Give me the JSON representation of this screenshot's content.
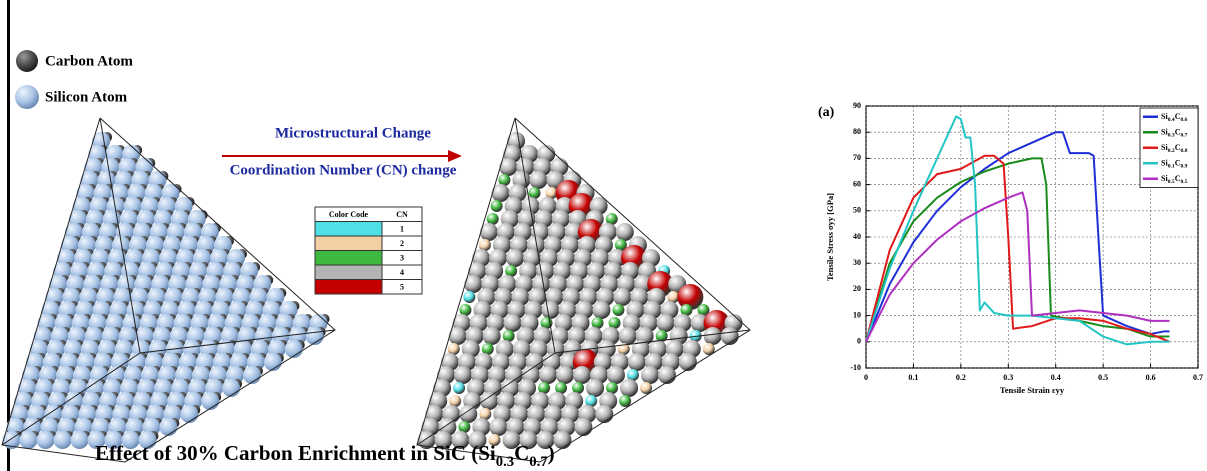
{
  "legend": {
    "carbon": "Carbon Atom",
    "silicon": "Silicon Atom",
    "carbon_color": "#4a4a4a",
    "silicon_color": "#a9c4e6"
  },
  "arrow": {
    "top": "Microstructural Change",
    "bottom": "Coordination Number (CN) change"
  },
  "table": {
    "header": [
      "Color Code",
      "CN"
    ],
    "rows": [
      {
        "color": "#4fe0e6",
        "cn": "1"
      },
      {
        "color": "#f3cfa4",
        "cn": "2"
      },
      {
        "color": "#3fb83f",
        "cn": "3"
      },
      {
        "color": "#b3b3b3",
        "cn": "4"
      },
      {
        "color": "#c40000",
        "cn": "5"
      }
    ]
  },
  "caption": "Effect of 30% Carbon Enrichment in SiC (Si0.3C0.7)",
  "chart_data": {
    "type": "line",
    "title": "(a)",
    "xlabel": "Tensile Strain εyy",
    "ylabel": "Tensile Stress σyy [GPa]",
    "xlim": [
      0,
      0.7
    ],
    "ylim": [
      -10,
      90
    ],
    "xticks": [
      0,
      0.1,
      0.2,
      0.3,
      0.4,
      0.5,
      0.6,
      0.7
    ],
    "yticks": [
      -10,
      0,
      10,
      20,
      30,
      40,
      50,
      60,
      70,
      80,
      90
    ],
    "grid": true,
    "legend": "upper-right",
    "series": [
      {
        "name": "Si0.4C0.6",
        "color": "#1f2fd6",
        "x": [
          0,
          0.05,
          0.1,
          0.15,
          0.2,
          0.25,
          0.3,
          0.35,
          0.4,
          0.415,
          0.43,
          0.47,
          0.48,
          0.49,
          0.5,
          0.55,
          0.6,
          0.63,
          0.64
        ],
        "values": [
          0,
          22,
          38,
          50,
          59,
          66,
          72,
          76,
          80,
          80,
          72,
          72,
          71,
          40,
          10,
          6,
          3,
          4,
          4
        ]
      },
      {
        "name": "Si0.3C0.7",
        "color": "#1a8a1a",
        "x": [
          0,
          0.05,
          0.1,
          0.15,
          0.2,
          0.25,
          0.3,
          0.35,
          0.37,
          0.38,
          0.39,
          0.45,
          0.5,
          0.55,
          0.6,
          0.64
        ],
        "values": [
          0,
          30,
          46,
          55,
          61,
          65,
          68,
          70,
          70,
          60,
          10,
          8,
          6,
          5,
          2,
          2
        ]
      },
      {
        "name": "Si0.2C0.8",
        "color": "#e01a1a",
        "x": [
          0,
          0.05,
          0.1,
          0.15,
          0.2,
          0.25,
          0.27,
          0.29,
          0.3,
          0.31,
          0.35,
          0.4,
          0.45,
          0.5,
          0.55,
          0.6,
          0.64
        ],
        "values": [
          0,
          35,
          55,
          64,
          66,
          71,
          71,
          68,
          40,
          5,
          6,
          9,
          9,
          8,
          5,
          3,
          0
        ]
      },
      {
        "name": "Si0.1C0.9",
        "color": "#22c4c4",
        "x": [
          0,
          0.05,
          0.1,
          0.15,
          0.19,
          0.2,
          0.21,
          0.22,
          0.23,
          0.24,
          0.25,
          0.27,
          0.3,
          0.35,
          0.4,
          0.45,
          0.5,
          0.55,
          0.6,
          0.64
        ],
        "values": [
          0,
          28,
          50,
          70,
          86,
          85,
          78,
          78,
          60,
          12,
          15,
          11,
          10,
          10,
          9,
          8,
          2,
          -1,
          0,
          0
        ]
      },
      {
        "name": "Si0.5C0.5",
        "color": "#b02fc0",
        "x": [
          0,
          0.05,
          0.1,
          0.15,
          0.2,
          0.25,
          0.3,
          0.33,
          0.34,
          0.35,
          0.4,
          0.45,
          0.5,
          0.55,
          0.6,
          0.64
        ],
        "values": [
          0,
          18,
          30,
          39,
          46,
          51,
          55,
          57,
          50,
          10,
          11,
          12,
          11,
          10,
          8,
          8
        ]
      }
    ]
  }
}
